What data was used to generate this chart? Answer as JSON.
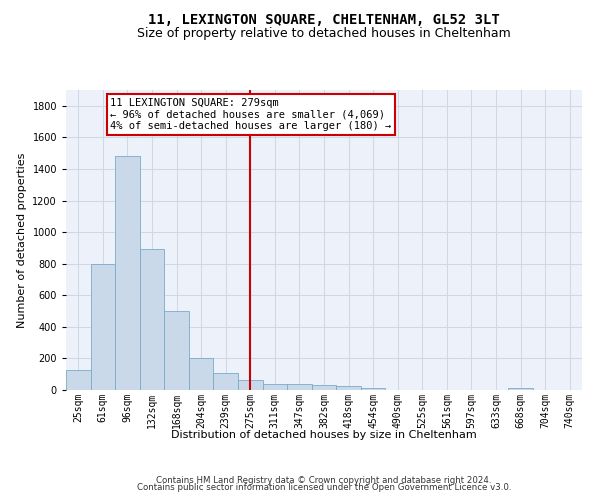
{
  "title_line1": "11, LEXINGTON SQUARE, CHELTENHAM, GL52 3LT",
  "title_line2": "Size of property relative to detached houses in Cheltenham",
  "xlabel": "Distribution of detached houses by size in Cheltenham",
  "ylabel": "Number of detached properties",
  "footer1": "Contains HM Land Registry data © Crown copyright and database right 2024.",
  "footer2": "Contains public sector information licensed under the Open Government Licence v3.0.",
  "bin_labels": [
    "25sqm",
    "61sqm",
    "96sqm",
    "132sqm",
    "168sqm",
    "204sqm",
    "239sqm",
    "275sqm",
    "311sqm",
    "347sqm",
    "382sqm",
    "418sqm",
    "454sqm",
    "490sqm",
    "525sqm",
    "561sqm",
    "597sqm",
    "633sqm",
    "668sqm",
    "704sqm",
    "740sqm"
  ],
  "bar_values": [
    125,
    800,
    1480,
    890,
    500,
    205,
    105,
    65,
    40,
    35,
    30,
    25,
    15,
    0,
    0,
    0,
    0,
    0,
    15,
    0,
    0
  ],
  "bar_color": "#c9d9ea",
  "bar_edgecolor": "#7aaac8",
  "grid_color": "#d0d8e8",
  "background_color": "#edf2fa",
  "vline_x_index": 7.0,
  "vline_color": "#cc0000",
  "annotation_text": "11 LEXINGTON SQUARE: 279sqm\n← 96% of detached houses are smaller (4,069)\n4% of semi-detached houses are larger (180) →",
  "annotation_box_color": "#ffffff",
  "annotation_box_edgecolor": "#cc0000",
  "ylim": [
    0,
    1900
  ],
  "yticks": [
    0,
    200,
    400,
    600,
    800,
    1000,
    1200,
    1400,
    1600,
    1800
  ],
  "title_fontsize": 10,
  "subtitle_fontsize": 9,
  "annotation_fontsize": 7.5,
  "axis_label_fontsize": 8,
  "tick_fontsize": 7,
  "ylabel_fontsize": 8
}
